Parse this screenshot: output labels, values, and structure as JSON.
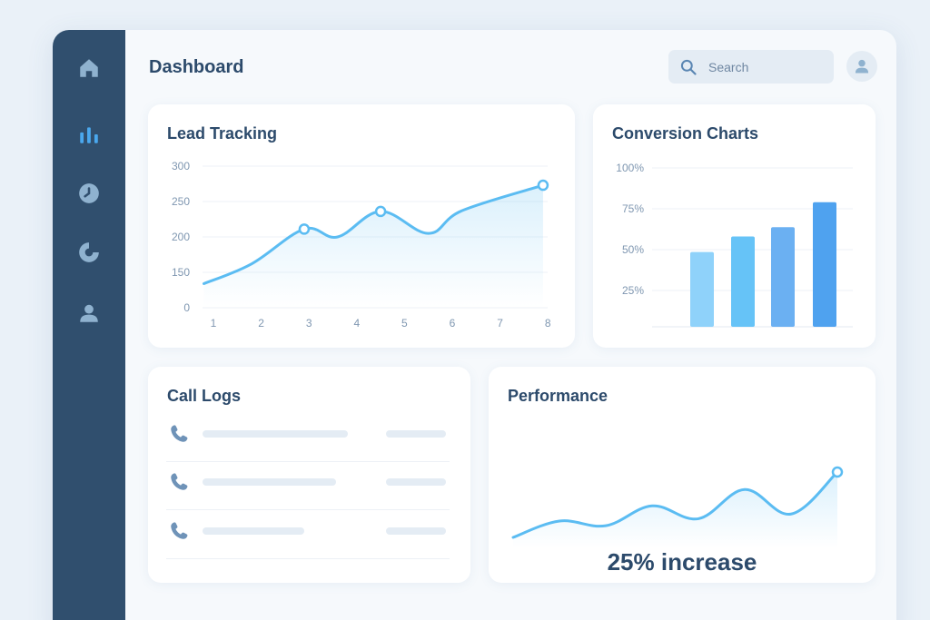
{
  "header": {
    "title": "Dashboard"
  },
  "search": {
    "placeholder": "Search"
  },
  "sidebar": {
    "items": [
      {
        "icon": "home-icon",
        "active": false
      },
      {
        "icon": "bar-chart-icon",
        "active": true
      },
      {
        "icon": "pie-chart-icon",
        "active": false
      },
      {
        "icon": "donut-chart-icon",
        "active": false
      },
      {
        "icon": "user-icon",
        "active": false
      }
    ]
  },
  "colors": {
    "sidebar": "#304f6e",
    "accent": "#5bbcf2",
    "active_icon": "#4aa8ee",
    "inactive_icon": "#8fb2cf",
    "heading": "#2c4a6b"
  },
  "lead_tracking": {
    "title": "Lead Tracking",
    "chart_data": {
      "type": "line",
      "x": [
        1,
        2,
        3,
        4,
        5,
        6,
        7,
        8
      ],
      "x_ticks": [
        "1",
        "2",
        "3",
        "4",
        "5",
        "6",
        "7",
        "8"
      ],
      "y_ticks": [
        "300",
        "250",
        "200",
        "150",
        "0"
      ],
      "series": [
        {
          "points": [
            [
              0.8,
              134
            ],
            [
              1.8,
              162
            ],
            [
              2.9,
              211
            ],
            [
              3.6,
              200
            ],
            [
              4.5,
              236
            ],
            [
              5.5,
              205
            ],
            [
              6.2,
              237
            ],
            [
              7.9,
              273
            ]
          ],
          "markers": [
            2,
            4,
            7
          ]
        }
      ],
      "ylim": [
        0,
        300
      ],
      "grid": true
    }
  },
  "conversion_charts": {
    "title": "Conversion Charts",
    "chart_data": {
      "type": "bar",
      "y_ticks": [
        "100%",
        "75%",
        "50%",
        "25%"
      ],
      "values": [
        48,
        58,
        64,
        80
      ],
      "colors": [
        "#8fd2fa",
        "#66c3f7",
        "#6bb0f2",
        "#4fa2ef"
      ],
      "ylim": [
        0,
        100
      ],
      "grid": true
    }
  },
  "call_logs": {
    "title": "Call Logs",
    "rows": [
      {
        "icon": "phone-icon"
      },
      {
        "icon": "phone-icon"
      },
      {
        "icon": "phone-icon"
      }
    ]
  },
  "performance": {
    "title": "Performance",
    "value": "25% increase",
    "chart_data": {
      "type": "line",
      "series": [
        {
          "values": [
            0,
            14,
            10,
            27,
            16,
            41,
            20,
            56
          ]
        }
      ]
    }
  }
}
